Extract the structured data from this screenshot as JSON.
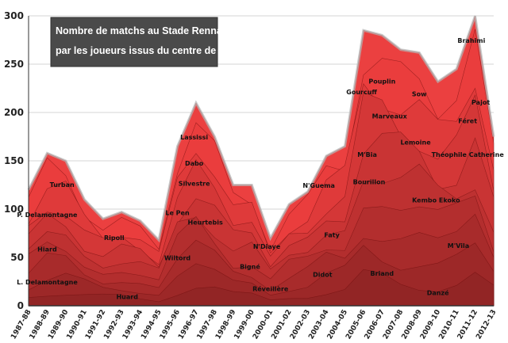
{
  "chart_data": {
    "type": "area",
    "stacked": true,
    "title_lines": [
      "Nombre de matchs au Stade Rennais",
      "par les joueurs issus du centre de formation"
    ],
    "xlabel": "",
    "ylabel": "",
    "ylim": [
      0,
      300
    ],
    "yticks": [
      0,
      50,
      100,
      150,
      200,
      250,
      300
    ],
    "grid": "horizontal",
    "x": [
      "1987-88",
      "1988-89",
      "1989-90",
      "1990-91",
      "1991-92",
      "1992-93",
      "1993-94",
      "1994-95",
      "1995-96",
      "1996-97",
      "1997-98",
      "1998-99",
      "1999-00",
      "2000-01",
      "2001-02",
      "2002-03",
      "2003-04",
      "2004-05",
      "2005-06",
      "2006-07",
      "2007-08",
      "2008-09",
      "2009-10",
      "2010-11",
      "2011-12",
      "2012-13"
    ],
    "totals": [
      120,
      158,
      150,
      110,
      90,
      97,
      88,
      68,
      165,
      210,
      175,
      125,
      125,
      70,
      105,
      118,
      155,
      165,
      285,
      280,
      265,
      262,
      232,
      245,
      300,
      175
    ],
    "labels": [
      {
        "text": "L. Delamontagne",
        "x": 1.0,
        "y": 22
      },
      {
        "text": "Hiard",
        "x": 1.0,
        "y": 56
      },
      {
        "text": "P. Delamontagne",
        "x": 1.0,
        "y": 92
      },
      {
        "text": "Turban",
        "x": 1.8,
        "y": 123
      },
      {
        "text": "Huard",
        "x": 5.3,
        "y": 7
      },
      {
        "text": "Ripoll",
        "x": 4.6,
        "y": 68
      },
      {
        "text": "Wiltord",
        "x": 8.0,
        "y": 47
      },
      {
        "text": "Le Pen",
        "x": 8.0,
        "y": 94
      },
      {
        "text": "Heurtebis",
        "x": 9.5,
        "y": 84
      },
      {
        "text": "Silvestre",
        "x": 8.9,
        "y": 124
      },
      {
        "text": "Dabo",
        "x": 8.9,
        "y": 145
      },
      {
        "text": "Lassissi",
        "x": 8.9,
        "y": 172
      },
      {
        "text": "Bigné",
        "x": 11.9,
        "y": 38
      },
      {
        "text": "Réveillère",
        "x": 13.0,
        "y": 15
      },
      {
        "text": "N'Diaye",
        "x": 12.8,
        "y": 59
      },
      {
        "text": "Didot",
        "x": 15.8,
        "y": 30
      },
      {
        "text": "Faty",
        "x": 16.3,
        "y": 71
      },
      {
        "text": "N'Guema",
        "x": 15.6,
        "y": 122
      },
      {
        "text": "Briand",
        "x": 19.0,
        "y": 31
      },
      {
        "text": "Bourillon",
        "x": 18.3,
        "y": 126
      },
      {
        "text": "M'Bia",
        "x": 18.2,
        "y": 154
      },
      {
        "text": "Gourcuff",
        "x": 17.9,
        "y": 219
      },
      {
        "text": "Pouplin",
        "x": 19.0,
        "y": 230
      },
      {
        "text": "Marveaux",
        "x": 19.4,
        "y": 194
      },
      {
        "text": "Lemoine",
        "x": 20.8,
        "y": 167
      },
      {
        "text": "Sow",
        "x": 21.0,
        "y": 217
      },
      {
        "text": "Kembo Ekoko",
        "x": 21.9,
        "y": 107
      },
      {
        "text": "Danzé",
        "x": 22.0,
        "y": 11
      },
      {
        "text": "M'Vila",
        "x": 23.1,
        "y": 60
      },
      {
        "text": "Théophile Catherine",
        "x": 23.6,
        "y": 154
      },
      {
        "text": "Féret",
        "x": 23.6,
        "y": 189
      },
      {
        "text": "Brahimi",
        "x": 23.8,
        "y": 272
      },
      {
        "text": "Pajot",
        "x": 24.3,
        "y": 208
      }
    ]
  }
}
